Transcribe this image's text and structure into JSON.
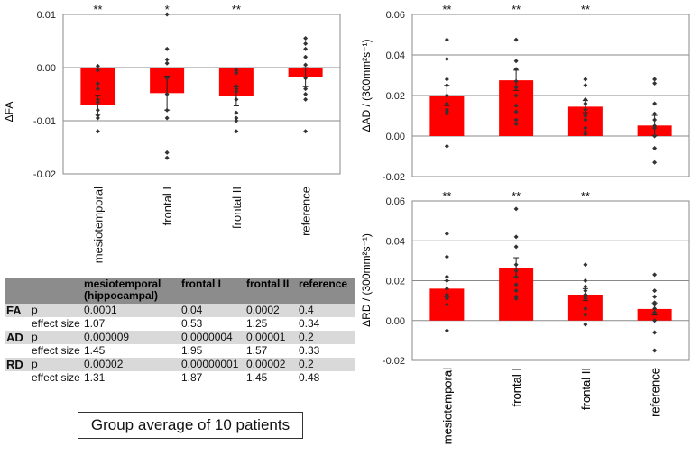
{
  "chart_data": [
    {
      "id": "fa",
      "type": "bar",
      "ylabel": "ΔFA",
      "ylim": [
        -0.02,
        0.01
      ],
      "yticks": [
        "0.01",
        "0.00",
        "-0.01",
        "-0.02"
      ],
      "ytick_values": [
        0.01,
        0.0,
        -0.01,
        -0.02
      ],
      "categories": [
        "mesiotemporal",
        "frontal I",
        "frontal II",
        "reference"
      ],
      "values": [
        -0.007,
        -0.0048,
        -0.0054,
        -0.0018
      ],
      "errors": [
        0.0018,
        0.0032,
        0.0018,
        0.0018
      ],
      "significance": [
        "**",
        "*",
        "**",
        ""
      ],
      "points": [
        [
          0.0003,
          -0.0005,
          -0.003,
          -0.004,
          -0.006,
          -0.0065,
          -0.008,
          -0.009,
          -0.0095,
          -0.012
        ],
        [
          0.01,
          0.0035,
          0.0015,
          0.0008,
          -0.002,
          -0.005,
          -0.008,
          -0.0095,
          -0.016,
          -0.017
        ],
        [
          -0.0005,
          -0.0035,
          -0.004,
          -0.0045,
          -0.006,
          -0.0085,
          -0.0095,
          -0.01,
          -0.012,
          -0.001
        ],
        [
          0.0055,
          0.0045,
          0.0035,
          0.002,
          0.0005,
          -0.002,
          -0.004,
          -0.005,
          -0.006,
          -0.012
        ]
      ]
    },
    {
      "id": "ad",
      "type": "bar",
      "ylabel": "ΔAD / (300mm²s⁻¹)",
      "ylim": [
        -0.02,
        0.06
      ],
      "yticks": [
        "0.06",
        "0.04",
        "0.02",
        "0.00",
        "-0.02"
      ],
      "ytick_values": [
        0.06,
        0.04,
        0.02,
        0.0,
        -0.02
      ],
      "categories": [
        "mesiotemporal",
        "frontal I",
        "frontal II",
        "reference"
      ],
      "values": [
        0.02,
        0.0275,
        0.0145,
        0.0052
      ],
      "errors": [
        0.005,
        0.005,
        0.003,
        0.005
      ],
      "significance": [
        "**",
        "**",
        "**",
        ""
      ],
      "points": [
        [
          0.0475,
          0.038,
          0.028,
          0.025,
          0.02,
          0.016,
          0.013,
          0.012,
          0.011,
          -0.005
        ],
        [
          0.0475,
          0.037,
          0.033,
          0.027,
          0.024,
          0.02,
          0.015,
          0.012,
          0.008,
          0.006
        ],
        [
          0.028,
          0.025,
          0.018,
          0.016,
          0.013,
          0.01,
          0.008,
          0.004,
          0.002,
          0.001
        ],
        [
          0.028,
          0.026,
          0.016,
          0.011,
          0.008,
          0.005,
          0.004,
          0.0,
          -0.006,
          -0.013
        ]
      ]
    },
    {
      "id": "rd",
      "type": "bar",
      "ylabel": "ΔRD / (300mm²s⁻¹)",
      "ylim": [
        -0.02,
        0.06
      ],
      "yticks": [
        "0.06",
        "0.04",
        "0.02",
        "0.00",
        "-0.02"
      ],
      "ytick_values": [
        0.06,
        0.04,
        0.02,
        0.0,
        -0.02
      ],
      "categories": [
        "mesiotemporal",
        "frontal I",
        "frontal II",
        "reference"
      ],
      "values": [
        0.016,
        0.0265,
        0.013,
        0.0058
      ],
      "errors": [
        0.004,
        0.005,
        0.003,
        0.003
      ],
      "significance": [
        "**",
        "**",
        "**",
        ""
      ],
      "points": [
        [
          0.0435,
          0.032,
          0.022,
          0.02,
          0.016,
          0.013,
          0.012,
          0.011,
          0.008,
          -0.005
        ],
        [
          0.056,
          0.042,
          0.037,
          0.028,
          0.025,
          0.022,
          0.018,
          0.015,
          0.012,
          0.011
        ],
        [
          0.028,
          0.02,
          0.017,
          0.015,
          0.013,
          0.012,
          0.011,
          0.006,
          0.003,
          -0.002
        ],
        [
          0.023,
          0.015,
          0.012,
          0.009,
          0.008,
          0.006,
          0.004,
          0.0,
          -0.006,
          -0.015
        ]
      ]
    }
  ],
  "table": {
    "headers": [
      "",
      "",
      "mesiotemporal (hippocampal)",
      "frontal I",
      "frontal II",
      "reference"
    ],
    "rows": [
      {
        "group": "FA",
        "metric": "p",
        "values": [
          "0.0001",
          "0.04",
          "0.0002",
          "0.4"
        ]
      },
      {
        "group": "",
        "metric": "effect size",
        "values": [
          "1.07",
          "0.53",
          "1.25",
          "0.34"
        ]
      },
      {
        "group": "AD",
        "metric": "p",
        "values": [
          "0.000009",
          "0.0000004",
          "0.00001",
          "0.2"
        ]
      },
      {
        "group": "",
        "metric": "effect size",
        "values": [
          "1.45",
          "1.95",
          "1.57",
          "0.33"
        ]
      },
      {
        "group": "RD",
        "metric": "p",
        "values": [
          "0.00002",
          "0.00000001",
          "0.00002",
          "0.2"
        ]
      },
      {
        "group": "",
        "metric": "effect size",
        "values": [
          "1.31",
          "1.87",
          "1.45",
          "0.48"
        ]
      }
    ]
  },
  "caption": "Group average of 10 patients",
  "colors": {
    "bar": "#ff0000",
    "grid": "#8a8a8a",
    "point": "#333333"
  }
}
